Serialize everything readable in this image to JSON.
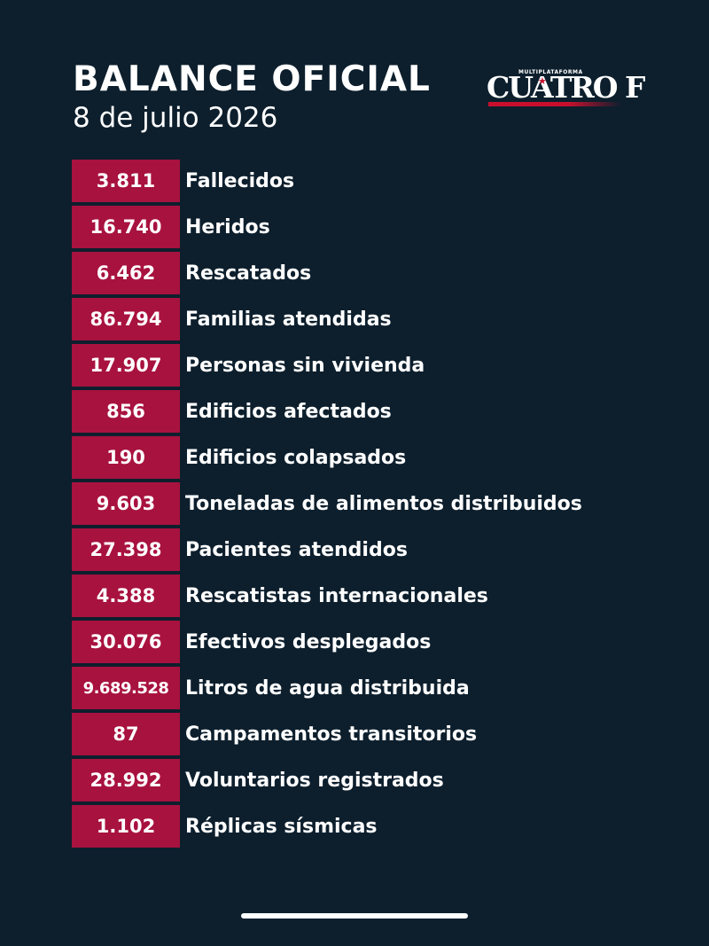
{
  "header": {
    "title": "BALANCE OFICIAL",
    "date": "8 de julio 2026"
  },
  "logo": {
    "superscript": "MULTIPLATAFORMA",
    "name": "CUATRO F",
    "brand_color": "#c8102e"
  },
  "colors": {
    "background": "#0d1f2d",
    "number_box": "#a8123f",
    "text": "#ffffff"
  },
  "stats": [
    {
      "value": "3.811",
      "label": "Fallecidos"
    },
    {
      "value": "16.740",
      "label": "Heridos"
    },
    {
      "value": "6.462",
      "label": "Rescatados"
    },
    {
      "value": "86.794",
      "label": "Familias atendidas"
    },
    {
      "value": "17.907",
      "label": "Personas sin vivienda"
    },
    {
      "value": "856",
      "label": "Edificios afectados"
    },
    {
      "value": "190",
      "label": "Edificios colapsados"
    },
    {
      "value": "9.603",
      "label": "Toneladas de alimentos distribuidos"
    },
    {
      "value": "27.398",
      "label": "Pacientes atendidos"
    },
    {
      "value": "4.388",
      "label": "Rescatistas internacionales"
    },
    {
      "value": "30.076",
      "label": "Efectivos desplegados"
    },
    {
      "value": "9.689.528",
      "label": "Litros de agua distribuida"
    },
    {
      "value": "87",
      "label": "Campamentos transitorios"
    },
    {
      "value": "28.992",
      "label": "Voluntarios registrados"
    },
    {
      "value": "1.102",
      "label": "Réplicas sísmicas"
    }
  ]
}
